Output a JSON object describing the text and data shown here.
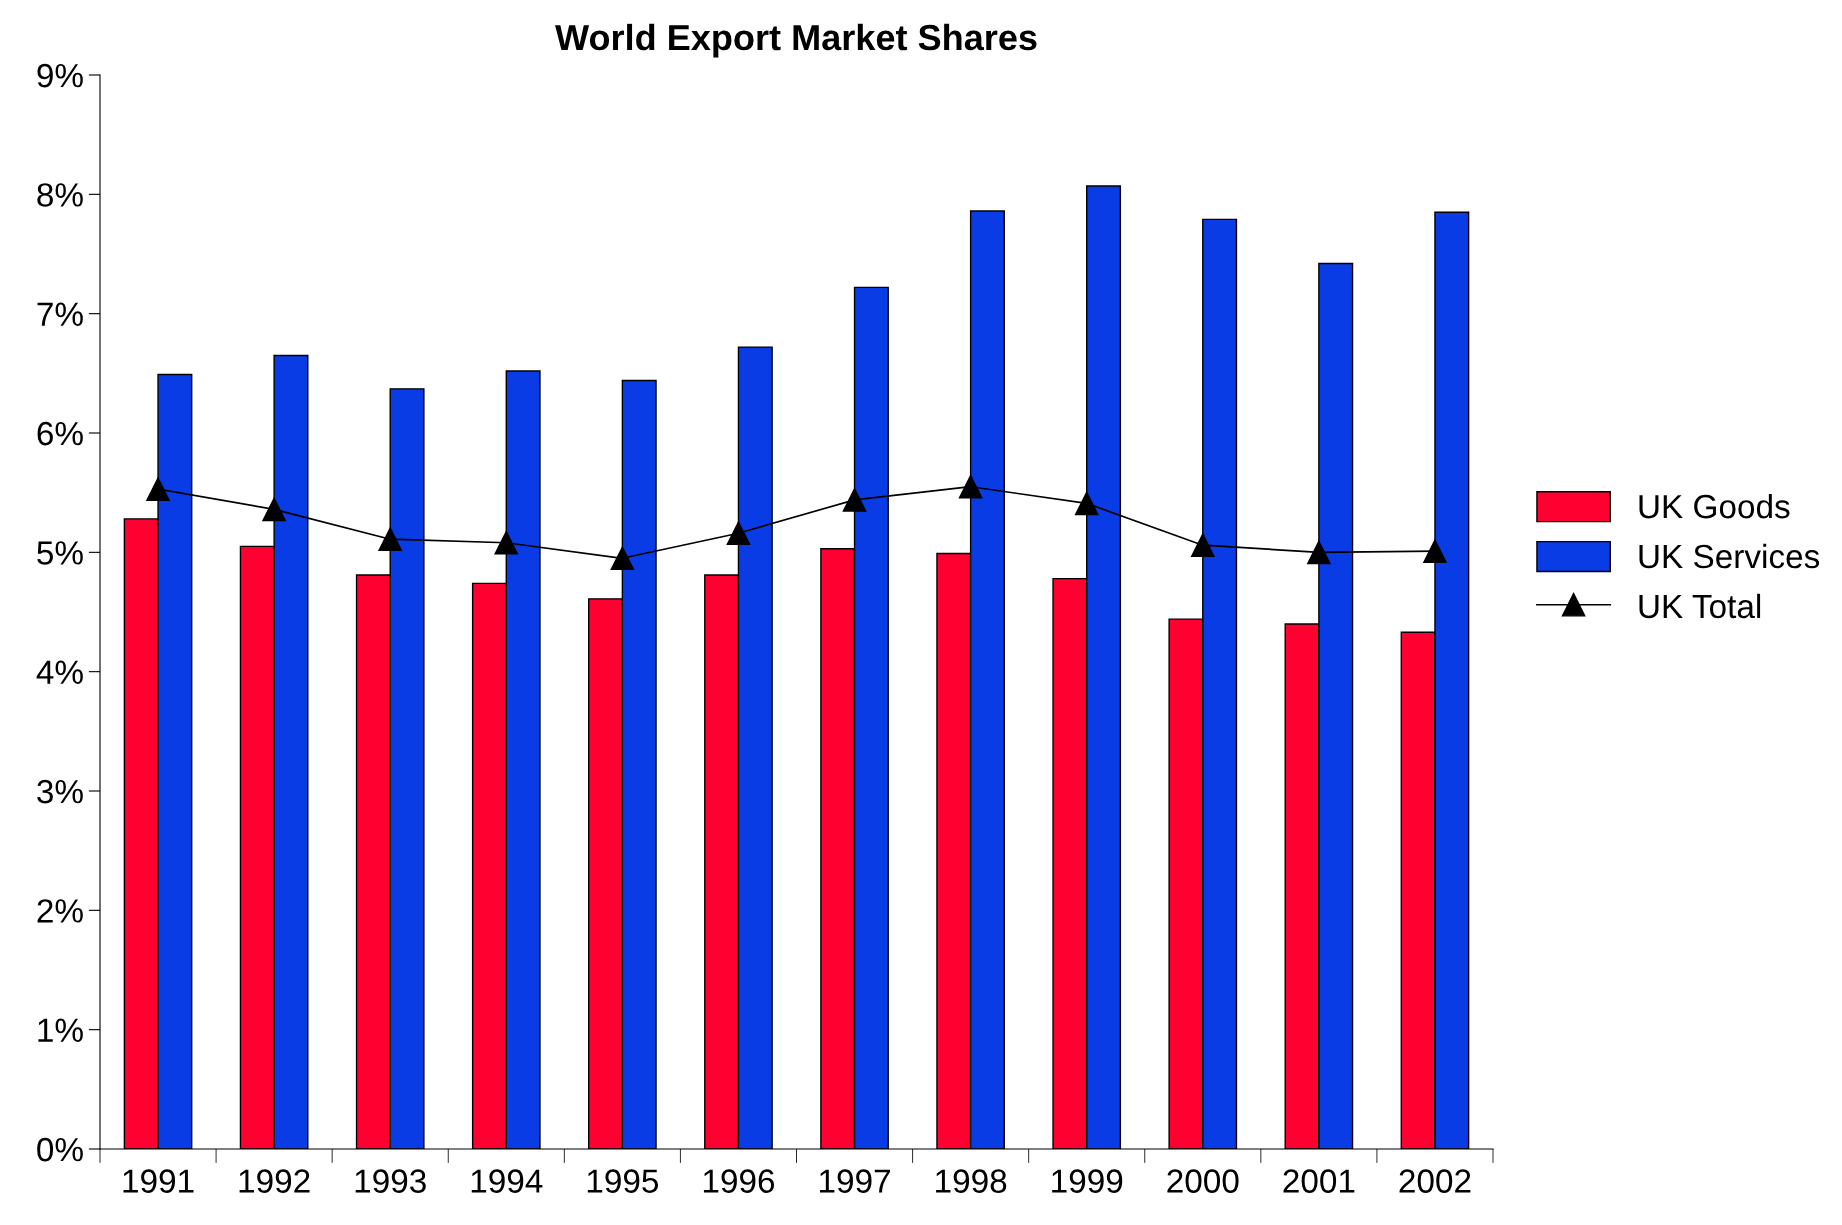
{
  "chart_data": {
    "type": "bar",
    "title": "World Export Market Shares",
    "categories": [
      "1991",
      "1992",
      "1993",
      "1994",
      "1995",
      "1996",
      "1997",
      "1998",
      "1999",
      "2000",
      "2001",
      "2002"
    ],
    "series": [
      {
        "name": "UK Goods",
        "color": "#ff0030",
        "values": [
          5.28,
          5.05,
          4.81,
          4.74,
          4.61,
          4.81,
          5.03,
          4.99,
          4.78,
          4.44,
          4.4,
          4.33
        ]
      },
      {
        "name": "UK Services",
        "color": "#0a3ce6",
        "values": [
          6.49,
          6.65,
          6.37,
          6.52,
          6.44,
          6.72,
          7.22,
          7.86,
          8.07,
          7.79,
          7.42,
          7.85
        ]
      },
      {
        "name": "UK Total",
        "type": "line",
        "color": "#000000",
        "marker": "triangle",
        "values": [
          5.53,
          5.36,
          5.11,
          5.08,
          4.95,
          5.16,
          5.44,
          5.55,
          5.41,
          5.06,
          5.0,
          5.01
        ]
      }
    ],
    "ylim": [
      0,
      9
    ],
    "yticks": [
      {
        "value": 0,
        "label": "0%"
      },
      {
        "value": 1,
        "label": "1%"
      },
      {
        "value": 2,
        "label": "2%"
      },
      {
        "value": 3,
        "label": "3%"
      },
      {
        "value": 4,
        "label": "4%"
      },
      {
        "value": 5,
        "label": "5%"
      },
      {
        "value": 6,
        "label": "6%"
      },
      {
        "value": 7,
        "label": "7%"
      },
      {
        "value": 8,
        "label": "8%"
      },
      {
        "value": 9,
        "label": "9%"
      }
    ],
    "grid": false,
    "legend": "right"
  }
}
